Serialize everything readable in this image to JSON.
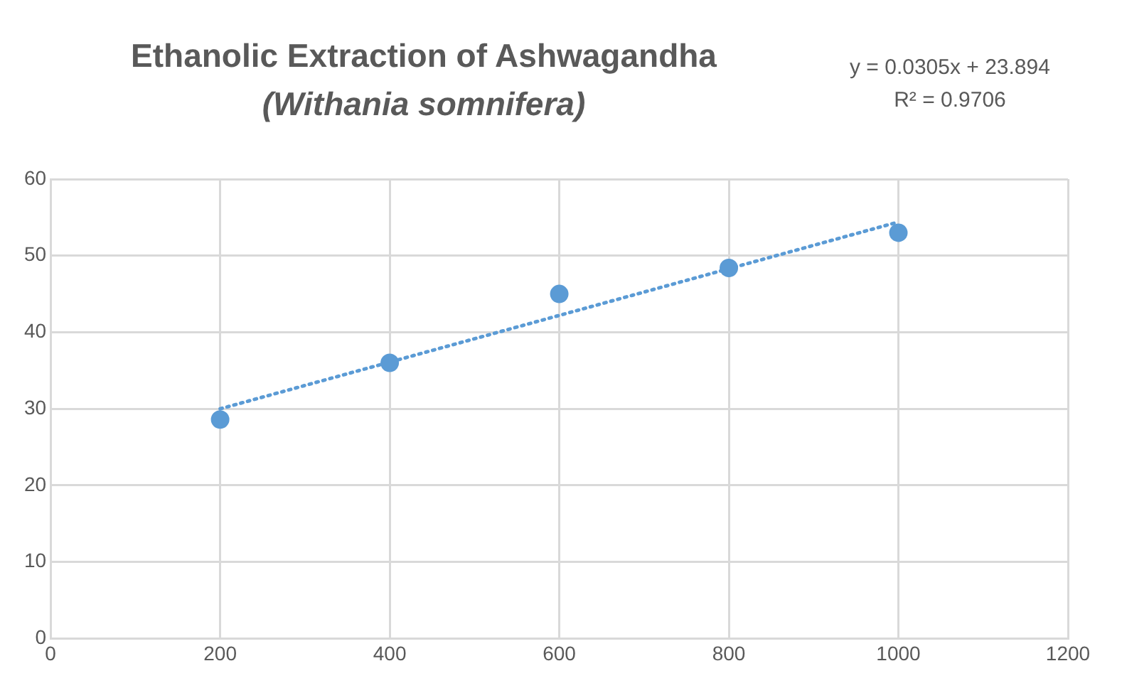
{
  "chart_data": {
    "type": "scatter",
    "title": "Ethanolic Extraction of Ashwagandha",
    "subtitle": "(Withania somnifera)",
    "annotations": [
      "y = 0.0305x + 23.894",
      "R² = 0.9706"
    ],
    "series": [
      {
        "type": "scatter",
        "color": "#5b9bd5",
        "x": [
          200,
          400,
          600,
          800,
          1000
        ],
        "values": [
          28.6,
          36,
          45,
          48.4,
          53
        ],
        "marker": "circle"
      },
      {
        "type": "line",
        "color": "#5b9bd5",
        "x": [
          200,
          1000
        ],
        "values": [
          30,
          54.4
        ],
        "line_style": "dotted",
        "marker": "none"
      }
    ],
    "xlim": [
      0,
      1200
    ],
    "xticks": [
      0,
      200,
      400,
      600,
      800,
      1000,
      1200
    ],
    "ylim": [
      0,
      60
    ],
    "yticks": [
      0,
      10,
      20,
      30,
      40,
      50,
      60
    ],
    "grid": true,
    "legend": false
  }
}
